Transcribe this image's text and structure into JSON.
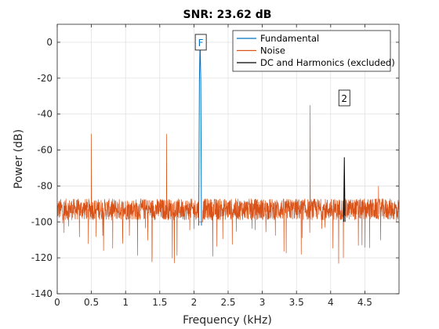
{
  "chart_data": {
    "type": "line",
    "title": "SNR:  23.62 dB",
    "xlabel": "Frequency (kHz)",
    "ylabel": "Power (dB)",
    "xlim": [
      0,
      5
    ],
    "ylim": [
      -140,
      10
    ],
    "xticks": [
      0,
      0.5,
      1,
      1.5,
      2,
      2.5,
      3,
      3.5,
      4,
      4.5
    ],
    "xtick_labels": [
      "0",
      "0.5",
      "1",
      "1.5",
      "2",
      "2.5",
      "3",
      "3.5",
      "4",
      "4.5"
    ],
    "yticks": [
      -140,
      -120,
      -100,
      -80,
      -60,
      -40,
      -20,
      0
    ],
    "ytick_labels": [
      "-140",
      "-120",
      "-100",
      "-80",
      "-60",
      "-40",
      "-20",
      "0"
    ],
    "grid": true,
    "legend_position": "top-right",
    "series": [
      {
        "name": "Fundamental",
        "color": "#0072BD",
        "x": [
          2.07,
          2.08,
          2.09,
          2.1,
          2.11
        ],
        "y": [
          -102,
          -21,
          1,
          -21,
          -102
        ]
      },
      {
        "name": "Noise",
        "color": "#D95319",
        "noise_floor_db": -93,
        "spurs": [
          {
            "x": 0.5,
            "y": -51
          },
          {
            "x": 1.6,
            "y": -51
          },
          {
            "x": 3.7,
            "y": -35
          },
          {
            "x": 4.7,
            "y": -80
          }
        ]
      },
      {
        "name": "DC and Harmonics (excluded)",
        "color": "#000000",
        "x": [
          4.19,
          4.2,
          4.21
        ],
        "y": [
          -100,
          -64,
          -100
        ]
      }
    ],
    "annotations": [
      {
        "text": "F",
        "x": 2.1,
        "y": 0,
        "color": "#0072BD"
      },
      {
        "text": "2",
        "x": 4.2,
        "y": -31,
        "color": "#000000"
      }
    ]
  }
}
